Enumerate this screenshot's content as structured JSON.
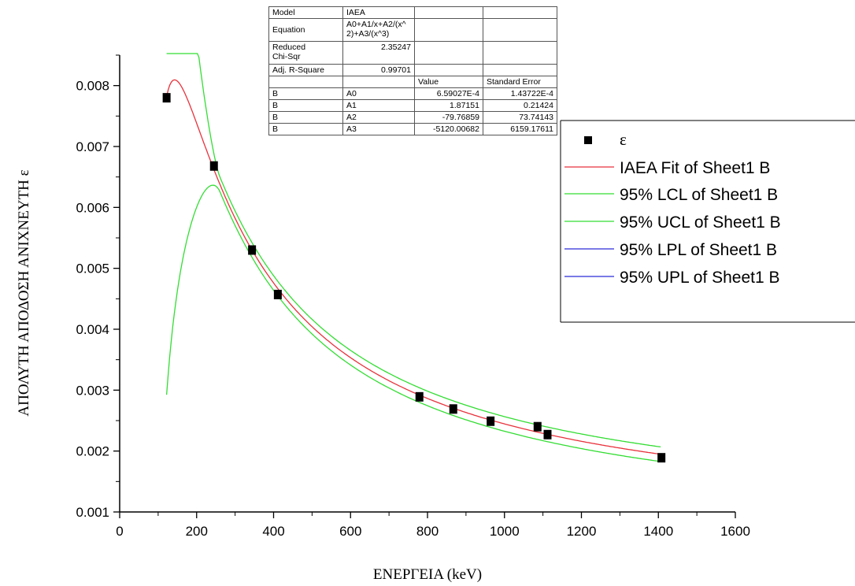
{
  "chart_data": {
    "type": "scatter",
    "xlabel": "ΕΝΕΡΓΕΙΑ (keV)",
    "ylabel": "ΑΠΟΛΥΤΗ ΑΠΟΔΟΣΗ ΑΝΙΧΝΕΥΤΗ ε",
    "xlim": [
      0,
      1600
    ],
    "ylim": [
      0.001,
      0.0085
    ],
    "x_ticks": [
      "0",
      "200",
      "400",
      "600",
      "800",
      "1000",
      "1200",
      "1400",
      "1600"
    ],
    "y_ticks": [
      "0.001",
      "0.002",
      "0.003",
      "0.004",
      "0.005",
      "0.006",
      "0.007",
      "0.008"
    ],
    "grid": false,
    "legend_position": "right",
    "series": [
      {
        "name": "ε",
        "kind": "points",
        "color": "#000000",
        "x": [
          122,
          245,
          344,
          411,
          779,
          867,
          964,
          1086,
          1112,
          1408
        ],
        "y": [
          0.0078,
          0.00668,
          0.0053,
          0.00457,
          0.00289,
          0.00269,
          0.00249,
          0.0024,
          0.00227,
          0.00189
        ],
        "yerr": 7e-05
      },
      {
        "name": "IAEA Fit of Sheet1 B",
        "kind": "line",
        "color": "#e8323c"
      },
      {
        "name": "95% LCL of Sheet1 B",
        "kind": "line",
        "color": "#33dd33"
      },
      {
        "name": "95% UCL of Sheet1 B",
        "kind": "line",
        "color": "#33dd33"
      },
      {
        "name": "95% LPL of Sheet1 B",
        "kind": "line",
        "color": "#2a2ad8"
      },
      {
        "name": "95% UPL of Sheet1 B",
        "kind": "line",
        "color": "#2a2ad8"
      }
    ],
    "fit_table": {
      "model_label": "Model",
      "model": "IAEA",
      "equation_label": "Equation",
      "equation_line1": "A0+A1/x+A2/(x^",
      "equation_line2": "2)+A3/(x^3)",
      "chi_label_line1": "Reduced",
      "chi_label_line2": "Chi-Sqr",
      "chi": "2.35247",
      "r2_label": "Adj. R-Square",
      "r2": "0.99701",
      "value_header": "Value",
      "error_header": "Standard Error",
      "rows": [
        {
          "dataset": "B",
          "param": "A0",
          "value": "6.59027E-4",
          "error": "1.43722E-4"
        },
        {
          "dataset": "B",
          "param": "A1",
          "value": "1.87151",
          "error": "0.21424"
        },
        {
          "dataset": "B",
          "param": "A2",
          "value": "-79.76859",
          "error": "73.74143"
        },
        {
          "dataset": "B",
          "param": "A3",
          "value": "-5120.00682",
          "error": "6159.17611"
        }
      ]
    }
  }
}
